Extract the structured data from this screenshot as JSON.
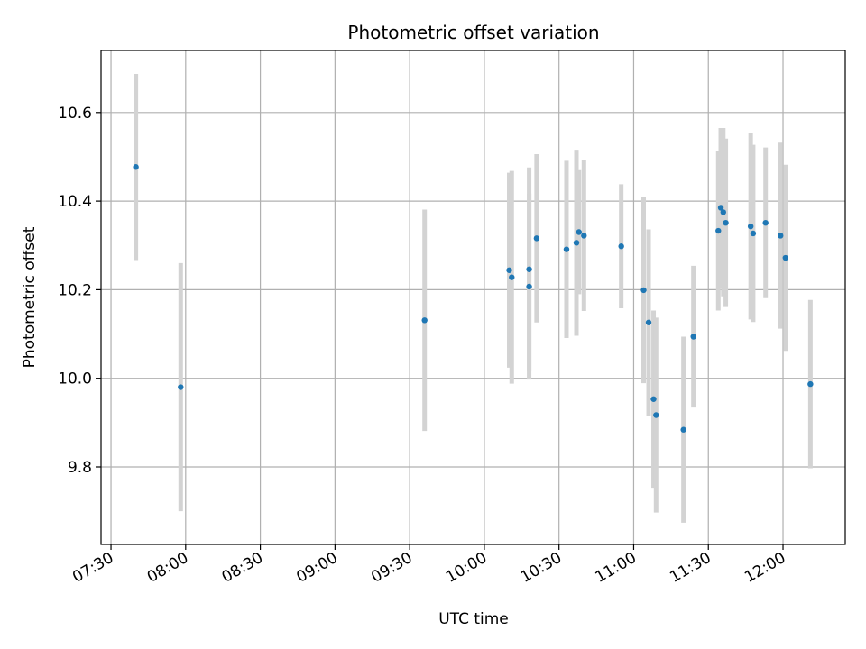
{
  "chart_data": {
    "type": "scatter",
    "title": "Photometric offset variation",
    "xlabel": "UTC time",
    "ylabel": "Photometric offset",
    "x_tick_labels": [
      "07:30",
      "08:00",
      "08:30",
      "09:00",
      "09:30",
      "10:00",
      "10:30",
      "11:00",
      "11:30",
      "12:00"
    ],
    "y_tick_labels": [
      "9.8",
      "10.0",
      "10.2",
      "10.4",
      "10.6"
    ],
    "y_ticks": [
      9.8,
      10.0,
      10.2,
      10.4,
      10.6
    ],
    "xlim": [
      "07:26",
      "12:25"
    ],
    "ylim": [
      9.625,
      10.74
    ],
    "grid": true,
    "marker_color": "#1f77b4",
    "errorbar_color": "#d3d3d3",
    "points": [
      {
        "x": "07:40",
        "y": 10.477,
        "err": 0.21
      },
      {
        "x": "07:58",
        "y": 9.98,
        "err": 0.28
      },
      {
        "x": "09:36",
        "y": 10.131,
        "err": 0.25
      },
      {
        "x": "10:10",
        "y": 10.244,
        "err": 0.22
      },
      {
        "x": "10:11",
        "y": 10.228,
        "err": 0.24
      },
      {
        "x": "10:18",
        "y": 10.207,
        "err": 0.21
      },
      {
        "x": "10:18",
        "y": 10.246,
        "err": 0.23
      },
      {
        "x": "10:21",
        "y": 10.316,
        "err": 0.19
      },
      {
        "x": "10:33",
        "y": 10.291,
        "err": 0.2
      },
      {
        "x": "10:37",
        "y": 10.306,
        "err": 0.21
      },
      {
        "x": "10:38",
        "y": 10.33,
        "err": 0.14
      },
      {
        "x": "10:40",
        "y": 10.322,
        "err": 0.17
      },
      {
        "x": "10:55",
        "y": 10.298,
        "err": 0.14
      },
      {
        "x": "11:04",
        "y": 10.199,
        "err": 0.21
      },
      {
        "x": "11:06",
        "y": 10.126,
        "err": 0.21
      },
      {
        "x": "11:08",
        "y": 9.953,
        "err": 0.2
      },
      {
        "x": "11:09",
        "y": 9.917,
        "err": 0.22
      },
      {
        "x": "11:20",
        "y": 9.884,
        "err": 0.21
      },
      {
        "x": "11:24",
        "y": 10.094,
        "err": 0.16
      },
      {
        "x": "11:34",
        "y": 10.333,
        "err": 0.18
      },
      {
        "x": "11:35",
        "y": 10.385,
        "err": 0.18
      },
      {
        "x": "11:36",
        "y": 10.375,
        "err": 0.19
      },
      {
        "x": "11:37",
        "y": 10.351,
        "err": 0.19
      },
      {
        "x": "11:47",
        "y": 10.343,
        "err": 0.21
      },
      {
        "x": "11:48",
        "y": 10.327,
        "err": 0.2
      },
      {
        "x": "11:53",
        "y": 10.351,
        "err": 0.17
      },
      {
        "x": "11:59",
        "y": 10.322,
        "err": 0.21
      },
      {
        "x": "12:01",
        "y": 10.272,
        "err": 0.21
      },
      {
        "x": "12:11",
        "y": 9.987,
        "err": 0.19
      }
    ]
  }
}
